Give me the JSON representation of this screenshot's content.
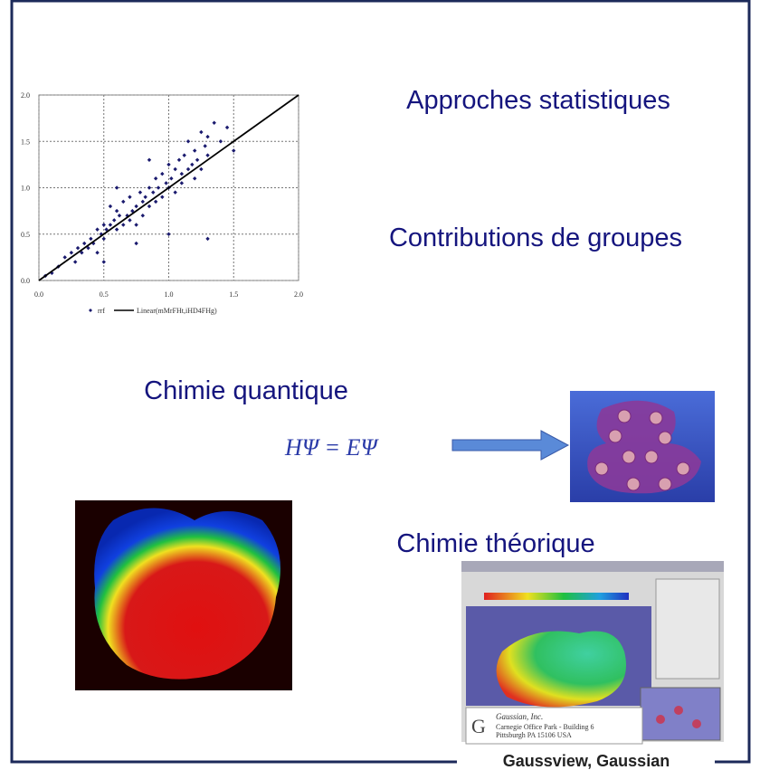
{
  "slide": {
    "headings": [
      "Approches statistiques",
      "Contributions de groupes",
      "Chimie quantique",
      "Chimie théorique"
    ],
    "equation": "HΨ = EΨ",
    "caption": "Gaussview, Gaussian",
    "gaussian_logo": {
      "company": "Gaussian, Inc.",
      "address_1": "Carnegie Office Park - Building 6",
      "address_2": "Pittsburgh PA 15106 USA"
    }
  },
  "chart_data": {
    "type": "scatter",
    "series": [
      {
        "name": "rrf",
        "color": "#1a1a6e",
        "x": [
          0.05,
          0.1,
          0.15,
          0.2,
          0.25,
          0.28,
          0.3,
          0.33,
          0.35,
          0.38,
          0.4,
          0.42,
          0.45,
          0.45,
          0.48,
          0.5,
          0.5,
          0.52,
          0.55,
          0.55,
          0.58,
          0.6,
          0.6,
          0.62,
          0.65,
          0.65,
          0.68,
          0.7,
          0.7,
          0.72,
          0.75,
          0.75,
          0.78,
          0.8,
          0.8,
          0.82,
          0.85,
          0.85,
          0.88,
          0.9,
          0.9,
          0.92,
          0.95,
          0.95,
          0.98,
          1.0,
          1.0,
          1.02,
          1.05,
          1.05,
          1.08,
          1.1,
          1.1,
          1.12,
          1.15,
          1.15,
          1.18,
          1.2,
          1.2,
          1.22,
          1.25,
          1.25,
          1.28,
          1.3,
          1.3,
          1.35,
          1.4,
          1.45,
          1.5,
          0.75,
          0.5,
          1.3,
          0.6,
          0.85,
          1.0
        ],
        "values": [
          0.05,
          0.08,
          0.15,
          0.25,
          0.3,
          0.2,
          0.35,
          0.3,
          0.4,
          0.35,
          0.45,
          0.4,
          0.55,
          0.3,
          0.5,
          0.6,
          0.45,
          0.55,
          0.8,
          0.6,
          0.65,
          0.55,
          0.75,
          0.7,
          0.6,
          0.85,
          0.7,
          0.65,
          0.9,
          0.75,
          0.8,
          0.6,
          0.95,
          0.85,
          0.7,
          0.9,
          1.0,
          0.8,
          0.95,
          1.1,
          0.85,
          1.0,
          0.9,
          1.15,
          1.05,
          1.0,
          1.25,
          1.1,
          1.2,
          0.95,
          1.3,
          1.15,
          1.05,
          1.35,
          1.2,
          1.5,
          1.25,
          1.4,
          1.1,
          1.3,
          1.6,
          1.2,
          1.45,
          1.55,
          1.35,
          1.7,
          1.5,
          1.65,
          1.4,
          0.4,
          0.2,
          0.45,
          1.0,
          1.3,
          0.5
        ]
      },
      {
        "name": "Linear(mMrFHt,iHD4FHg)",
        "color": "#000000",
        "type": "line",
        "x": [
          0,
          2
        ],
        "values": [
          0,
          2
        ]
      }
    ],
    "xlim": [
      0,
      2
    ],
    "ylim": [
      0,
      2
    ],
    "xticks": [
      {
        "value": 0,
        "label": "0.0"
      },
      0.5,
      {
        "value": 1,
        "label": "1.0"
      },
      1.5,
      {
        "value": 2,
        "label": "2.0"
      }
    ],
    "yticks": [
      {
        "value": 0,
        "label": "0.0"
      },
      0.5,
      {
        "value": 1,
        "label": "1.0"
      },
      1.5,
      {
        "value": 2,
        "label": "2.0"
      }
    ],
    "grid": true
  }
}
